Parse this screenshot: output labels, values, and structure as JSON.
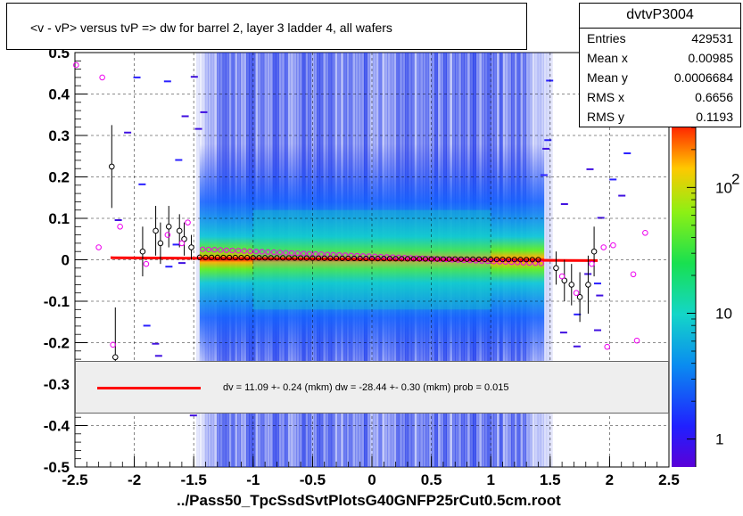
{
  "title": "<v - vP>       versus  tvP =>  dw for barrel 2, layer 3 ladder 4, all wafers",
  "stats": {
    "name": "dvtvP3004",
    "rows": [
      {
        "label": "Entries",
        "value": "429531"
      },
      {
        "label": "Mean x",
        "value": "0.00985"
      },
      {
        "label": "Mean y",
        "value": "0.0006684"
      },
      {
        "label": "RMS x",
        "value": "0.6656"
      },
      {
        "label": "RMS y",
        "value": "0.1193"
      }
    ]
  },
  "fit_text": "dv =   11.09 +-  0.24 (mkm) dw =  -28.44 +-  0.30 (mkm) prob = 0.015",
  "file_label": "../Pass50_TpcSsdSvtPlotsG40GNFP25rCut0.5cm.root",
  "colors": {
    "fit_line": "#ff0000",
    "profile_black": "#000000",
    "profile_magenta": "#ee00ee"
  },
  "chart_data": {
    "type": "heatmap",
    "xlim": [
      -2.5,
      2.5
    ],
    "ylim": [
      -0.5,
      0.5
    ],
    "x_ticks": [
      "-2.5",
      "-2",
      "-1.5",
      "-1",
      "-0.5",
      "0",
      "0.5",
      "1",
      "1.5",
      "2",
      "2.5"
    ],
    "y_ticks": [
      "-0.5",
      "-0.4",
      "-0.3",
      "-0.2",
      "-0.1",
      "0",
      "0.1",
      "0.2",
      "0.3",
      "0.4",
      "0.5"
    ],
    "grid": true,
    "colorbar": {
      "scale": "log",
      "ticks": [
        {
          "base": "1",
          "exp": "",
          "value": 1
        },
        {
          "base": "10",
          "exp": "",
          "value": 10
        },
        {
          "base": "10",
          "exp": "2",
          "value": 100
        }
      ],
      "max": 300
    },
    "fit_line": {
      "x": [
        -2.2,
        1.9
      ],
      "y": [
        0.005,
        -0.002
      ]
    },
    "profile_black": [
      {
        "x": -2.19,
        "y": 0.225,
        "err": 0.1
      },
      {
        "x": -2.16,
        "y": -0.235,
        "err": 0.12
      },
      {
        "x": -1.93,
        "y": 0.02,
        "err": 0.06
      },
      {
        "x": -1.82,
        "y": 0.07,
        "err": 0.06
      },
      {
        "x": -1.78,
        "y": 0.04,
        "err": 0.05
      },
      {
        "x": -1.71,
        "y": 0.08,
        "err": 0.05
      },
      {
        "x": -1.62,
        "y": 0.07,
        "err": 0.04
      },
      {
        "x": -1.58,
        "y": 0.05,
        "err": 0.04
      },
      {
        "x": -1.52,
        "y": 0.03,
        "err": 0.03
      },
      {
        "x": 1.55,
        "y": -0.02,
        "err": 0.04
      },
      {
        "x": 1.62,
        "y": -0.05,
        "err": 0.05
      },
      {
        "x": 1.68,
        "y": -0.06,
        "err": 0.05
      },
      {
        "x": 1.75,
        "y": -0.09,
        "err": 0.06
      },
      {
        "x": 1.82,
        "y": -0.06,
        "err": 0.07
      },
      {
        "x": 1.87,
        "y": 0.02,
        "err": 0.06
      }
    ],
    "profile_magenta": [
      {
        "x": -2.49,
        "y": 0.47
      },
      {
        "x": -2.27,
        "y": 0.44
      },
      {
        "x": -2.3,
        "y": 0.03
      },
      {
        "x": -2.18,
        "y": -0.205
      },
      {
        "x": -2.12,
        "y": 0.08
      },
      {
        "x": -1.9,
        "y": -0.01
      },
      {
        "x": -1.72,
        "y": 0.06
      },
      {
        "x": -1.6,
        "y": 0.04
      },
      {
        "x": -1.55,
        "y": 0.09
      },
      {
        "x": 1.6,
        "y": -0.04
      },
      {
        "x": 1.72,
        "y": -0.08
      },
      {
        "x": 1.85,
        "y": -0.01
      },
      {
        "x": 1.95,
        "y": 0.03
      },
      {
        "x": 2.03,
        "y": 0.035
      },
      {
        "x": 2.2,
        "y": -0.035
      },
      {
        "x": 2.3,
        "y": 0.065
      },
      {
        "x": 2.23,
        "y": -0.195
      },
      {
        "x": 1.98,
        "y": -0.21
      }
    ]
  }
}
